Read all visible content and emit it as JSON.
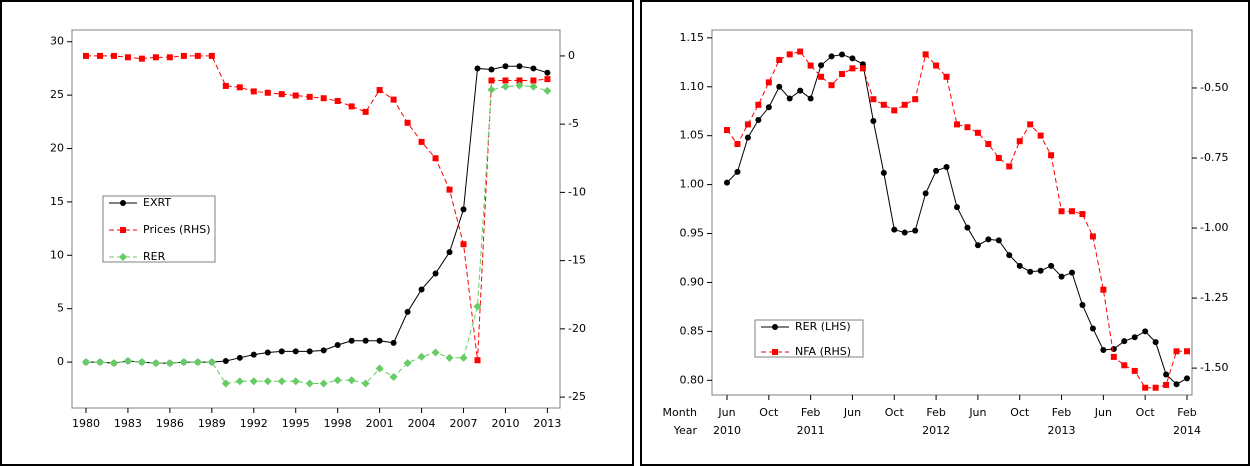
{
  "chart_data": [
    {
      "type": "line",
      "x": [
        1980,
        1981,
        1982,
        1983,
        1984,
        1985,
        1986,
        1987,
        1988,
        1989,
        1990,
        1991,
        1992,
        1993,
        1994,
        1995,
        1996,
        1997,
        1998,
        1999,
        2000,
        2001,
        2002,
        2003,
        2004,
        2005,
        2006,
        2007,
        2008,
        2009,
        2010,
        2011,
        2012,
        2013
      ],
      "xlim": [
        1979,
        2013.9
      ],
      "xticks": [
        1980,
        1983,
        1986,
        1989,
        1992,
        1995,
        1998,
        2001,
        2004,
        2007,
        2010,
        2013
      ],
      "ylim": [
        -4.3,
        31.1
      ],
      "yticks": [
        0,
        5,
        10,
        15,
        20,
        25,
        30
      ],
      "y2lim": [
        -25.8,
        1.9
      ],
      "y2ticks": [
        -25,
        -20,
        -15,
        -10,
        -5,
        0
      ],
      "series": [
        {
          "name": "EXRT",
          "color": "#000000",
          "marker": "circle",
          "dash": "solid",
          "values": [
            0,
            0,
            -0.1,
            0.1,
            0,
            -0.1,
            -0.1,
            0,
            0,
            0,
            0.1,
            0.4,
            0.7,
            0.9,
            1.0,
            1.0,
            1.0,
            1.1,
            1.6,
            2.0,
            2.0,
            2.0,
            1.8,
            4.7,
            6.8,
            8.3,
            10.3,
            14.3,
            27.5,
            27.4,
            27.7,
            27.7,
            27.5,
            27.1
          ]
        },
        {
          "name": "Prices (RHS)",
          "color": "#ff0000",
          "marker": "square",
          "dash": "dashed",
          "axis": "y2",
          "values": [
            0,
            0,
            0,
            -0.1,
            -0.2,
            -0.1,
            -0.1,
            0,
            0,
            0,
            -2.2,
            -2.3,
            -2.6,
            -2.7,
            -2.8,
            -2.9,
            -3.0,
            -3.1,
            -3.3,
            -3.7,
            -4.1,
            -2.5,
            -3.2,
            -4.9,
            -6.3,
            -7.5,
            -9.8,
            -13.8,
            -22.3,
            -1.8,
            -1.8,
            -1.8,
            -1.8,
            -1.7
          ]
        },
        {
          "name": "RER",
          "color": "#66cc66",
          "marker": "diamond",
          "dash": "dashed",
          "values": [
            0,
            0,
            -0.1,
            0.1,
            0,
            -0.1,
            -0.1,
            0,
            0,
            0,
            -2.0,
            -1.8,
            -1.8,
            -1.8,
            -1.8,
            -1.8,
            -2.0,
            -2.0,
            -1.7,
            -1.7,
            -2.0,
            -0.6,
            -1.4,
            -0.1,
            0.5,
            0.9,
            0.4,
            0.4,
            5.2,
            25.5,
            25.8,
            25.9,
            25.8,
            25.4
          ]
        }
      ]
    },
    {
      "type": "line",
      "x_axis_row_labels": [
        "Month",
        "Year"
      ],
      "categories": [
        "Jun",
        null,
        null,
        null,
        "Oct",
        null,
        null,
        null,
        "Feb",
        null,
        null,
        null,
        "Jun",
        null,
        null,
        null,
        "Oct",
        null,
        null,
        null,
        "Feb",
        null,
        null,
        null,
        "Jun",
        null,
        null,
        null,
        "Oct",
        null,
        null,
        null,
        "Feb",
        null,
        null,
        null,
        "Jun",
        null,
        null,
        null,
        "Oct",
        null,
        null,
        null,
        "Feb"
      ],
      "category_years": [
        "2010",
        null,
        null,
        null,
        null,
        null,
        null,
        null,
        "2011",
        null,
        null,
        null,
        null,
        null,
        null,
        null,
        null,
        null,
        null,
        null,
        "2012",
        null,
        null,
        null,
        null,
        null,
        null,
        null,
        null,
        null,
        null,
        null,
        "2013",
        null,
        null,
        null,
        null,
        null,
        null,
        null,
        null,
        null,
        null,
        null,
        "2014"
      ],
      "ylim": [
        0.785,
        1.158
      ],
      "yticks": [
        {
          "value": 0.8,
          "label": "0.80"
        },
        0.85,
        {
          "value": 0.9,
          "label": "0.90"
        },
        0.95,
        {
          "value": 1.0,
          "label": "1.00"
        },
        1.05,
        {
          "value": 1.1,
          "label": "1.10"
        },
        1.15
      ],
      "y2lim": [
        -1.596,
        -0.293
      ],
      "y2ticks": [
        {
          "value": -1.5,
          "label": "-1.50"
        },
        -1.25,
        {
          "value": -1.0,
          "label": "-1.00"
        },
        -0.75,
        {
          "value": -0.5,
          "label": "-0.50"
        }
      ],
      "series": [
        {
          "name": "RER (LHS)",
          "color": "#000000",
          "marker": "circle",
          "dash": "solid",
          "values": [
            1.002,
            1.013,
            1.048,
            1.066,
            1.079,
            1.1,
            1.088,
            1.096,
            1.088,
            1.122,
            1.131,
            1.133,
            1.129,
            1.123,
            1.065,
            1.012,
            0.954,
            0.951,
            0.953,
            0.991,
            1.014,
            1.018,
            0.977,
            0.956,
            0.938,
            0.944,
            0.943,
            0.928,
            0.917,
            0.911,
            0.912,
            0.917,
            0.906,
            0.91,
            0.877,
            0.853,
            0.831,
            0.832,
            0.84,
            0.844,
            0.85,
            0.839,
            0.806,
            0.796,
            0.802
          ]
        },
        {
          "name": "NFA (RHS)",
          "color": "#ff0000",
          "marker": "square",
          "dash": "dashed",
          "axis": "y2",
          "values": [
            -0.65,
            -0.7,
            -0.63,
            -0.56,
            -0.48,
            -0.4,
            -0.38,
            -0.37,
            -0.42,
            -0.46,
            -0.49,
            -0.45,
            -0.43,
            -0.43,
            -0.54,
            -0.56,
            -0.58,
            -0.56,
            -0.54,
            -0.38,
            -0.42,
            -0.46,
            -0.63,
            -0.64,
            -0.66,
            -0.7,
            -0.75,
            -0.78,
            -0.69,
            -0.63,
            -0.67,
            -0.74,
            -0.94,
            -0.94,
            -0.95,
            -1.03,
            -1.22,
            -1.46,
            -1.49,
            -1.51,
            -1.57,
            -1.57,
            -1.56,
            -1.44,
            -1.44
          ]
        }
      ]
    }
  ]
}
